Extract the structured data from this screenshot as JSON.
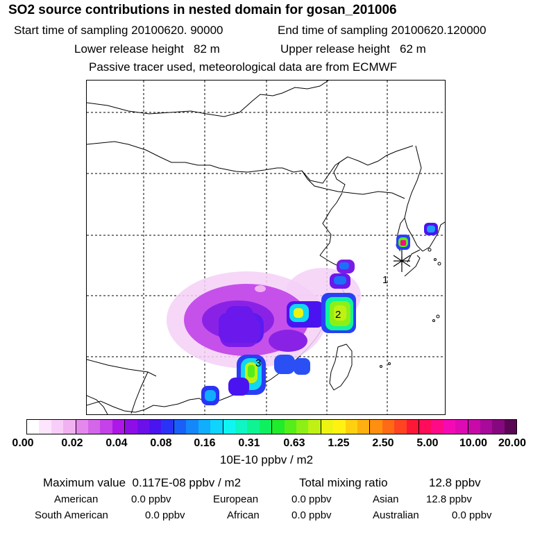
{
  "header": {
    "title": "SO2 source contributions in nested domain for gosan_201006",
    "start_label": "Start time of sampling",
    "start_value": "20100620. 90000",
    "end_label": "End time of sampling",
    "end_value": "20100620.120000",
    "lower_label": "Lower release height",
    "lower_value": "82 m",
    "upper_label": "Upper release height",
    "upper_value": "62 m",
    "note": "Passive tracer used, meteorological data are from ECMWF"
  },
  "map": {
    "source_labels": [
      "1",
      "2",
      "3"
    ],
    "receptor_symbol": "receptor-star"
  },
  "legend": {
    "colors": [
      "#ffffff",
      "#fde6fd",
      "#f9cdf9",
      "#f1b2f1",
      "#e488ee",
      "#d466ea",
      "#c442e8",
      "#ad18e6",
      "#8e0ee8",
      "#6c10ea",
      "#4a14f0",
      "#2a33f5",
      "#1860f8",
      "#1487fa",
      "#10aefc",
      "#0fd4fc",
      "#0ff6f2",
      "#0ff5c4",
      "#0ff493",
      "#0ff060",
      "#20ec2c",
      "#55ee1a",
      "#8cf016",
      "#bff214",
      "#eef412",
      "#fff212",
      "#ffd010",
      "#ffb010",
      "#ff8f10",
      "#ff6a16",
      "#ff4422",
      "#ff1836",
      "#ff0c5a",
      "#ff0a86",
      "#f40ab4",
      "#de0ab4",
      "#c80aa8",
      "#a80a9a",
      "#86087e",
      "#5c0554"
    ],
    "ticks": [
      "0.00",
      "0.02",
      "0.04",
      "0.08",
      "0.16",
      "0.31",
      "0.63",
      "1.25",
      "2.50",
      "5.00",
      "10.00",
      "20.00"
    ],
    "units": "10E-10 ppbv / m2"
  },
  "summary": {
    "max_label": "Maximum value",
    "max_value": "0.117E-08 ppbv / m2",
    "total_label": "Total mixing ratio",
    "total_value": "12.8 ppbv",
    "regions": [
      {
        "name": "American",
        "value": "0.0 ppbv"
      },
      {
        "name": "European",
        "value": "0.0 ppbv"
      },
      {
        "name": "Asian",
        "value": "12.8 ppbv"
      },
      {
        "name": "South American",
        "value": "0.0 ppbv"
      },
      {
        "name": "African",
        "value": "0.0 ppbv"
      },
      {
        "name": "Australian",
        "value": "0.0 ppbv"
      }
    ]
  }
}
